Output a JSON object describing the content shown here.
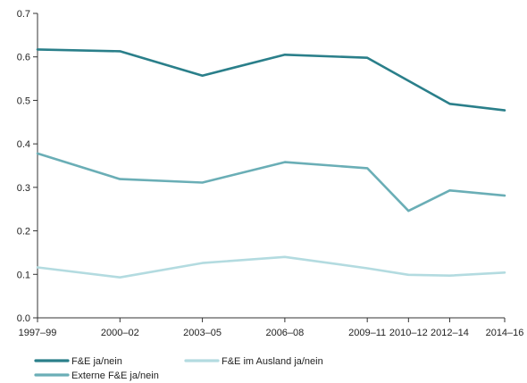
{
  "chart_data": {
    "type": "line",
    "title": "",
    "xlabel": "",
    "ylabel": "",
    "categories": [
      "1997–99",
      "2000–02",
      "2003–05",
      "2006–08",
      "2009–11",
      "2010–12",
      "2012–14",
      "2014–16"
    ],
    "x_positions": [
      1998,
      2001,
      2004,
      2007,
      2010,
      2011.5,
      2013,
      2015
    ],
    "xlim": [
      1998,
      2015
    ],
    "ylim": [
      0.0,
      0.7
    ],
    "yticks": [
      "0.0",
      "0.1",
      "0.2",
      "0.3",
      "0.4",
      "0.5",
      "0.6",
      "0.7"
    ],
    "grid": false,
    "legend_position": "bottom-left",
    "series": [
      {
        "name": "F&E ja/nein",
        "color": "#2a7f8a",
        "values": [
          0.617,
          0.613,
          0.557,
          0.605,
          0.598,
          0.545,
          0.492,
          0.477
        ]
      },
      {
        "name": "Externe F&E ja/nein",
        "color": "#6aaeb6",
        "values": [
          0.378,
          0.319,
          0.311,
          0.358,
          0.344,
          0.246,
          0.293,
          0.281
        ]
      },
      {
        "name": "F&E im Ausland ja/nein",
        "color": "#b3dbe0",
        "values": [
          0.116,
          0.093,
          0.126,
          0.14,
          0.114,
          0.099,
          0.097,
          0.104
        ]
      }
    ]
  }
}
